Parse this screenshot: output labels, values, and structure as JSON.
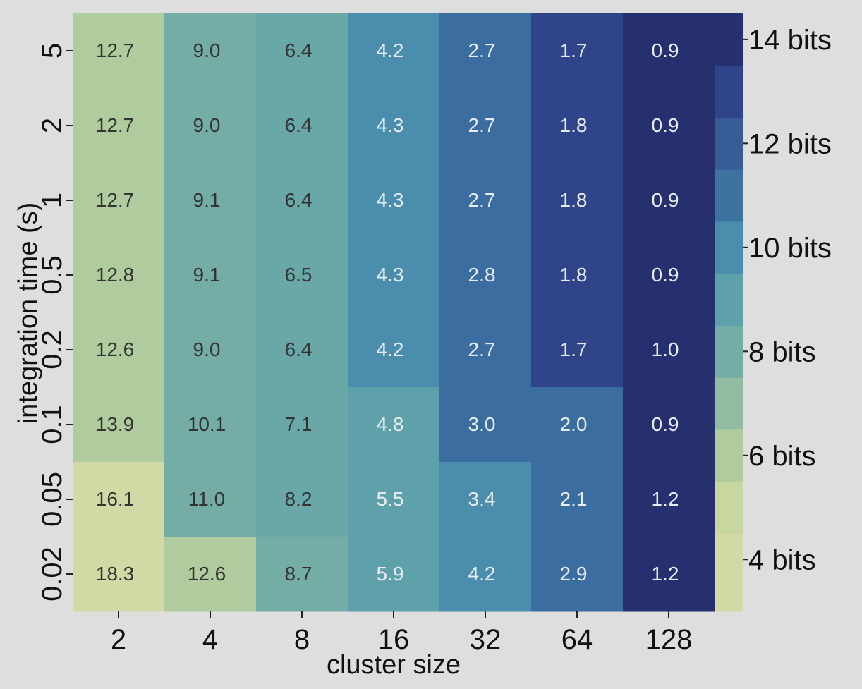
{
  "chart_data": {
    "type": "heatmap",
    "title": "",
    "xlabel": "cluster size",
    "ylabel": "integration time (s)",
    "x_categories": [
      "2",
      "4",
      "8",
      "16",
      "32",
      "64",
      "128"
    ],
    "y_categories": [
      "5",
      "2",
      "1",
      "0.5",
      "0.2",
      "0.1",
      "0.05",
      "0.02"
    ],
    "values": [
      [
        12.7,
        9.0,
        6.4,
        4.2,
        2.7,
        1.7,
        0.9
      ],
      [
        12.7,
        9.0,
        6.4,
        4.3,
        2.7,
        1.8,
        0.9
      ],
      [
        12.7,
        9.1,
        6.4,
        4.3,
        2.7,
        1.8,
        0.9
      ],
      [
        12.8,
        9.1,
        6.5,
        4.3,
        2.8,
        1.8,
        0.9
      ],
      [
        12.6,
        9.0,
        6.4,
        4.2,
        2.7,
        1.7,
        1.0
      ],
      [
        13.9,
        10.1,
        7.1,
        4.8,
        3.0,
        2.0,
        0.9
      ],
      [
        16.1,
        11.0,
        8.2,
        5.5,
        3.4,
        2.1,
        1.2
      ],
      [
        18.3,
        12.6,
        8.7,
        5.9,
        4.2,
        2.9,
        1.2
      ]
    ],
    "cell_labels": [
      [
        "12.7",
        "9.0",
        "6.4",
        "4.2",
        "2.7",
        "1.7",
        "0.9"
      ],
      [
        "12.7",
        "9.0",
        "6.4",
        "4.3",
        "2.7",
        "1.8",
        "0.9"
      ],
      [
        "12.7",
        "9.1",
        "6.4",
        "4.3",
        "2.7",
        "1.8",
        "0.9"
      ],
      [
        "12.8",
        "9.1",
        "6.5",
        "4.3",
        "2.8",
        "1.8",
        "0.9"
      ],
      [
        "12.6",
        "9.0",
        "6.4",
        "4.2",
        "2.7",
        "1.7",
        "1.0"
      ],
      [
        "13.9",
        "10.1",
        "7.1",
        "4.8",
        "3.0",
        "2.0",
        "0.9"
      ],
      [
        "16.1",
        "11.0",
        "8.2",
        "5.5",
        "3.4",
        "2.1",
        "1.2"
      ],
      [
        "18.3",
        "12.6",
        "8.7",
        "5.9",
        "4.2",
        "2.9",
        "1.2"
      ]
    ],
    "cell_color_levels": [
      [
        1,
        3,
        4,
        6,
        7,
        8,
        9
      ],
      [
        1,
        3,
        4,
        6,
        7,
        8,
        9
      ],
      [
        1,
        3,
        4,
        6,
        7,
        8,
        9
      ],
      [
        1,
        3,
        4,
        6,
        7,
        8,
        9
      ],
      [
        1,
        3,
        4,
        6,
        7,
        8,
        9
      ],
      [
        1,
        3,
        4,
        5,
        7,
        7,
        9
      ],
      [
        0,
        3,
        4,
        5,
        6,
        7,
        9
      ],
      [
        0,
        1,
        3,
        5,
        6,
        7,
        9
      ]
    ],
    "colorbar": {
      "tick_labels": [
        "14 bits",
        "12 bits",
        "10 bits",
        "8 bits",
        "6 bits",
        "4 bits"
      ],
      "tick_values": [
        14,
        12,
        10,
        8,
        6,
        4
      ],
      "range": [
        3,
        14.5
      ],
      "bands": [
        {
          "from": 3.0,
          "to": 4.5,
          "color": "#d2d9a5"
        },
        {
          "from": 4.5,
          "to": 5.5,
          "color": "#c8d6a0"
        },
        {
          "from": 5.5,
          "to": 6.5,
          "color": "#b0cc9e"
        },
        {
          "from": 6.5,
          "to": 7.5,
          "color": "#92bca2"
        },
        {
          "from": 7.5,
          "to": 8.5,
          "color": "#74aca6"
        },
        {
          "from": 8.5,
          "to": 9.5,
          "color": "#5ea1aa"
        },
        {
          "from": 9.5,
          "to": 10.5,
          "color": "#4a8dac"
        },
        {
          "from": 10.5,
          "to": 11.5,
          "color": "#3e73a0"
        },
        {
          "from": 11.5,
          "to": 12.5,
          "color": "#375c98"
        },
        {
          "from": 12.5,
          "to": 13.5,
          "color": "#2f4489"
        },
        {
          "from": 13.5,
          "to": 14.5,
          "color": "#27306e"
        }
      ]
    },
    "palette": [
      "#d2d9a5",
      "#b0cc9e",
      "#92bca2",
      "#74aca6",
      "#6aa8a8",
      "#5ea1aa",
      "#4a8dac",
      "#3b6da0",
      "#2f4489",
      "#27306e"
    ],
    "label_colors": {
      "dark": "#333333",
      "light": "#e8ecef"
    },
    "grid": false,
    "legend": "colorbar-right"
  }
}
